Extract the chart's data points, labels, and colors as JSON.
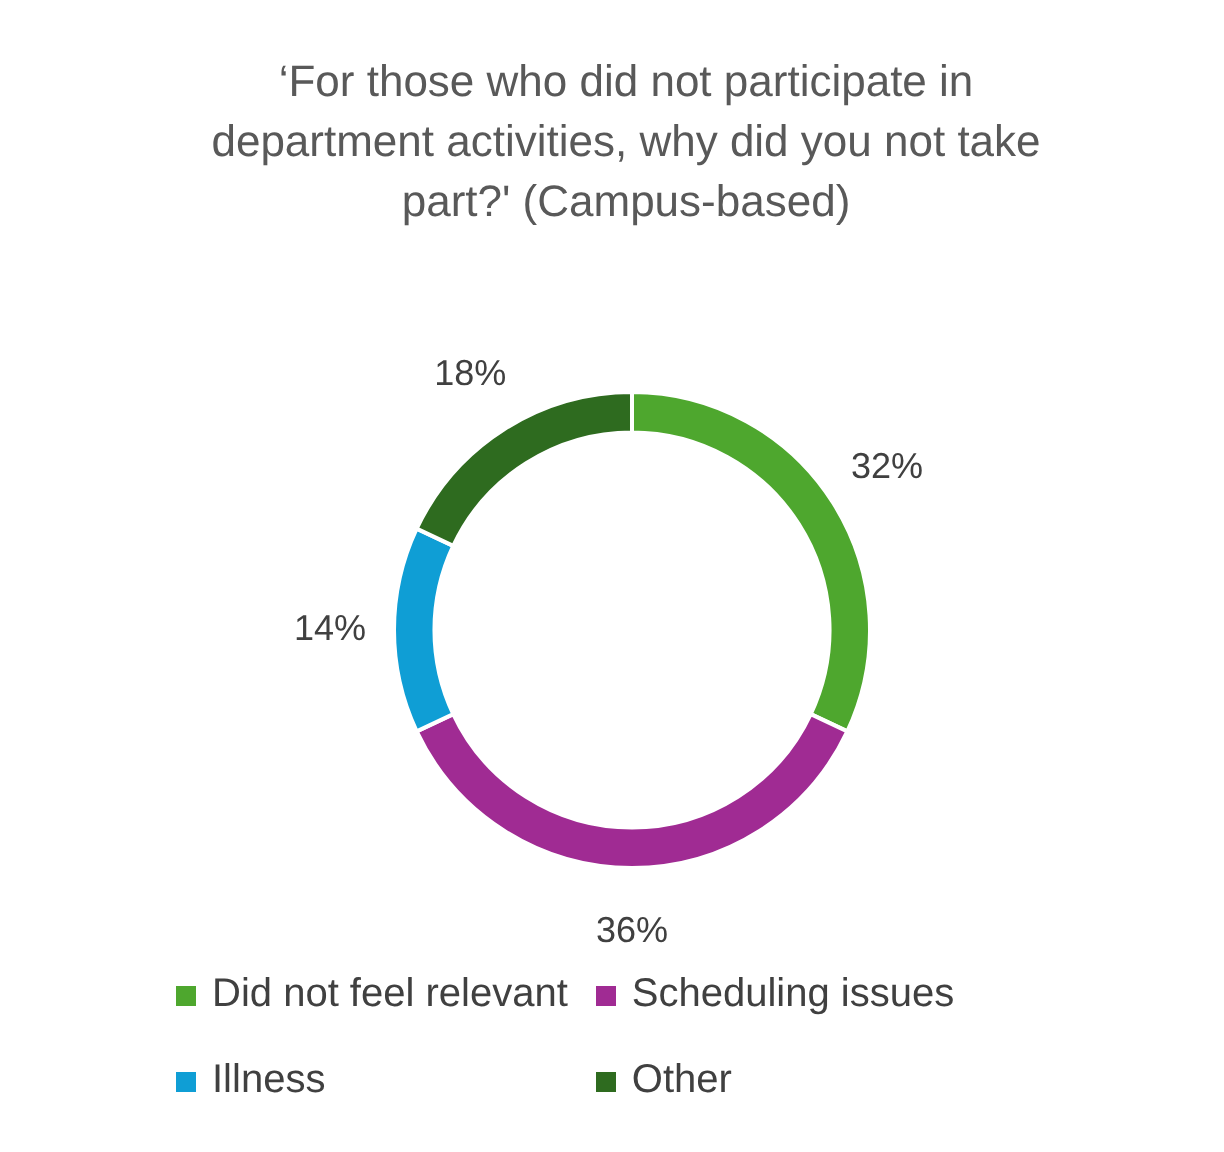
{
  "chart_data": {
    "type": "donut",
    "title": "‘For those who did not participate in department activities, why did you not take part?' (Campus-based)",
    "categories": [
      "Did not feel relevant",
      "Scheduling issues",
      "Illness",
      "Other"
    ],
    "values": [
      32,
      36,
      14,
      18
    ],
    "colors": [
      "#4ea72e",
      "#a02b93",
      "#0f9ed5",
      "#2e6b1f"
    ],
    "value_labels": [
      "32%",
      "36%",
      "14%",
      "18%"
    ],
    "legend": "bottom"
  }
}
